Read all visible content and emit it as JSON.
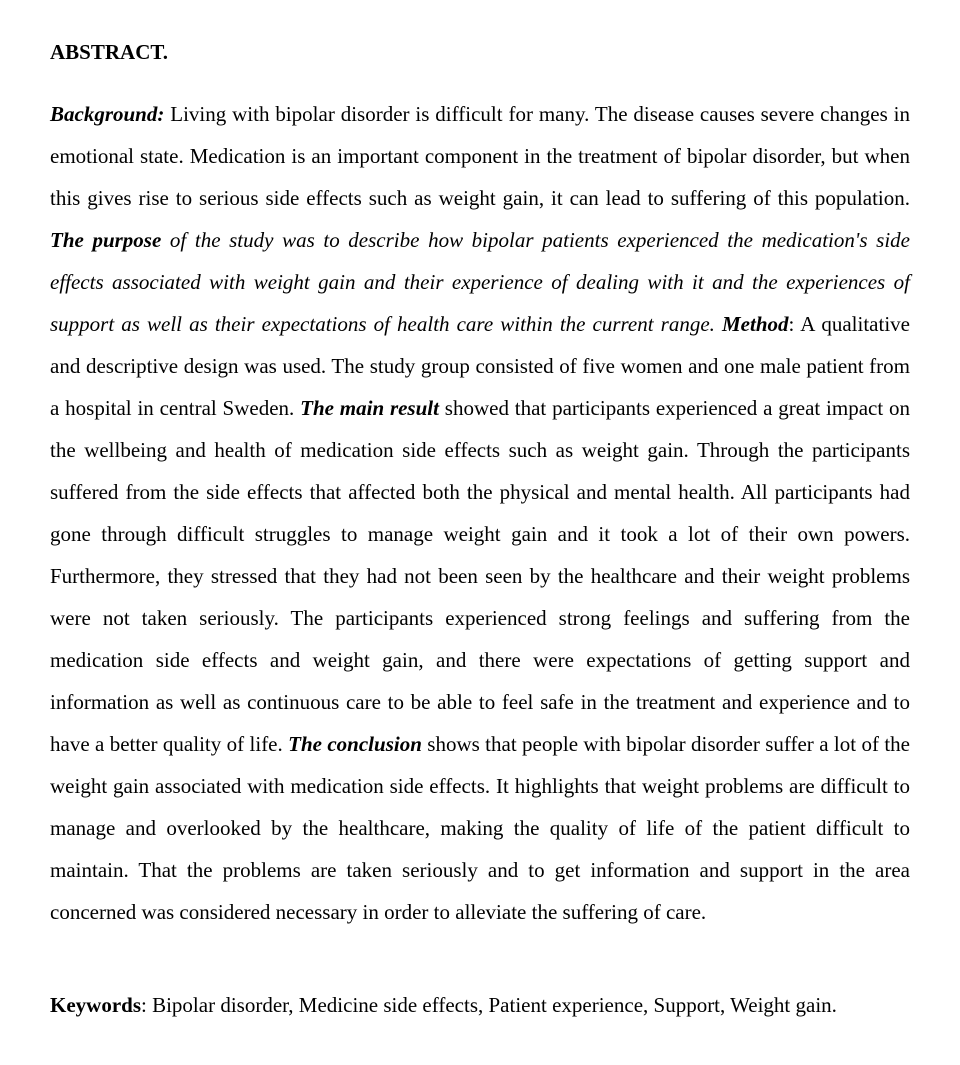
{
  "heading": "ABSTRACT.",
  "labels": {
    "background": "Background:",
    "purpose": "The purpose",
    "method": "Method",
    "main_result": "The main result",
    "conclusion": "The conclusion",
    "keywords": "Keywords"
  },
  "text": {
    "s1": " Living with bipolar disorder is difficult for many. The disease causes severe changes in emotional state. Medication is an important component in the treatment of bipolar disorder, but when this gives rise to serious side effects such as weight gain, it can lead to suffering of this population. ",
    "s2": " of the study was to describe how bipolar patients experienced the medication's side effects associated with weight gain and their experience of dealing with it and the experiences of support as well as their expectations of health care within the current range. ",
    "s3": ": A qualitative and descriptive design was used. The study group consisted of five women and one male patient from a hospital in central Sweden. ",
    "s4": " showed that participants experienced a great impact on the wellbeing and health of medication side effects such as weight gain. Through the participants suffered from the side effects that affected both the physical and mental health. All participants had gone through difficult struggles to manage weight gain and it took a lot of their own powers. Furthermore, they stressed that they had not been seen by the healthcare and their weight problems were not taken seriously. The participants experienced strong feelings and suffering from the medication side effects and weight gain, and there were expectations of getting support and information as well as continuous care to be able to feel safe in the treatment and experience and to have a better quality of life. ",
    "s5": " shows that people with bipolar disorder suffer a lot of the weight gain associated with medication side effects. It highlights that weight problems are difficult to manage and overlooked by the healthcare, making the quality of life of the patient difficult to maintain. That the problems are taken seriously and to get information and support in the area concerned was considered necessary in order to alleviate the suffering of care."
  },
  "keywords_text": ": Bipolar disorder, Medicine side effects, Patient experience, Support, Weight gain."
}
